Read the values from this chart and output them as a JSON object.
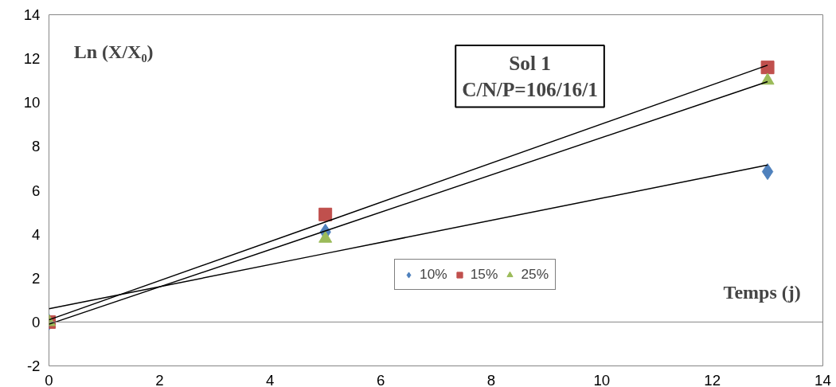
{
  "chart_data": {
    "type": "scatter",
    "title": "Sol 1\nC/N/P=106/16/1",
    "xlabel": "Temps (j)",
    "ylabel": "Ln (X/X₀)",
    "x": [
      0,
      5,
      13
    ],
    "series": [
      {
        "name": "10%",
        "color": "#4f81bd",
        "marker": "diamond",
        "values": [
          0,
          4.1,
          6.85
        ]
      },
      {
        "name": "15%",
        "color": "#c0504d",
        "marker": "square",
        "values": [
          0,
          4.9,
          11.6
        ]
      },
      {
        "name": "25%",
        "color": "#9bbb59",
        "marker": "triangle",
        "values": [
          0,
          3.8,
          11.0
        ]
      },
      {
        "type": "line",
        "color": "#000000",
        "values": [
          0.6,
          3.12,
          7.15
        ]
      },
      {
        "type": "line",
        "color": "#000000",
        "values": [
          0.1,
          4.56,
          11.7
        ]
      },
      {
        "type": "line",
        "color": "#000000",
        "values": [
          -0.1,
          4.15,
          10.95
        ]
      }
    ],
    "xlim": [
      0,
      14
    ],
    "xticks": [
      0,
      2,
      4,
      6,
      8,
      10,
      12,
      14
    ],
    "ylim": [
      -2,
      14
    ],
    "yticks": [
      -2,
      0,
      2,
      4,
      6,
      8,
      10,
      12,
      14
    ],
    "ref_lines": [
      {
        "axis": "y",
        "value": 0,
        "color": "#868686"
      }
    ],
    "grid": false,
    "legend": "bottom"
  }
}
